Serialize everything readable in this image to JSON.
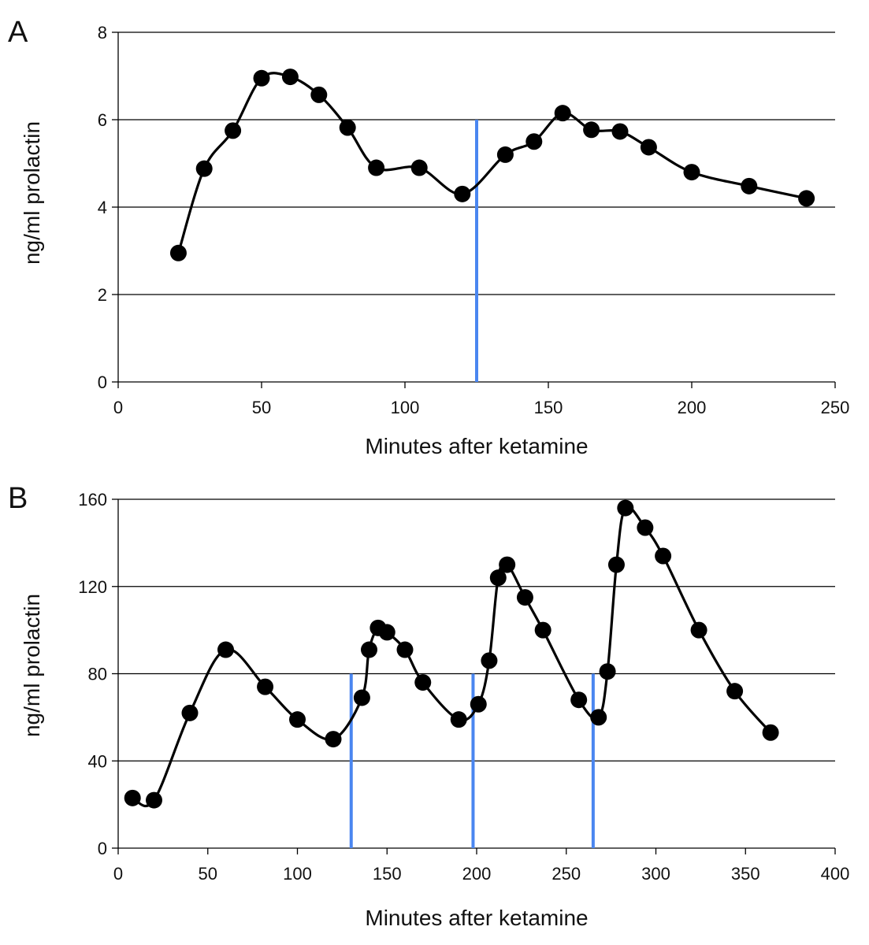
{
  "colors": {
    "line": "#000000",
    "marker": "#000000",
    "grid": "#000000",
    "event": "#4a86f0"
  },
  "chart_data": [
    {
      "type": "line",
      "panel": "A",
      "xlabel": "Minutes after ketamine",
      "ylabel": "ng/ml prolactin",
      "xlim": [
        0,
        250
      ],
      "ylim": [
        0,
        8
      ],
      "xticks": [
        0,
        50,
        100,
        150,
        200,
        250
      ],
      "yticks": [
        0,
        2,
        4,
        6,
        8
      ],
      "grid": "horizontal",
      "smooth": true,
      "series": [
        {
          "x": [
            21,
            30,
            40,
            50,
            60,
            70,
            80,
            90,
            105,
            120,
            135,
            145,
            155,
            165,
            175,
            185,
            200,
            220,
            240
          ],
          "y": [
            2.95,
            4.88,
            5.75,
            6.95,
            6.98,
            6.57,
            5.82,
            4.9,
            4.9,
            4.3,
            5.2,
            5.5,
            6.15,
            5.77,
            5.73,
            5.37,
            4.8,
            4.48,
            4.2
          ]
        }
      ],
      "events": [
        {
          "x": 125,
          "y_top": 6
        }
      ]
    },
    {
      "type": "line",
      "panel": "B",
      "xlabel": "Minutes after ketamine",
      "ylabel": "ng/ml prolactin",
      "xlim": [
        0,
        400
      ],
      "ylim": [
        0,
        160
      ],
      "xticks": [
        0,
        50,
        100,
        150,
        200,
        250,
        300,
        350,
        400
      ],
      "yticks": [
        0,
        40,
        80,
        120,
        160
      ],
      "grid": "horizontal",
      "smooth": true,
      "series": [
        {
          "x": [
            8,
            20,
            40,
            60,
            82,
            100,
            120,
            136,
            140,
            145,
            150,
            160,
            170,
            190,
            201,
            207,
            212,
            217,
            227,
            237,
            257,
            268,
            273,
            278,
            283,
            294,
            304,
            324,
            344,
            364
          ],
          "y": [
            23,
            22,
            62,
            91,
            74,
            59,
            50,
            69,
            91,
            101,
            99,
            91,
            76,
            59,
            66,
            86,
            124,
            130,
            115,
            100,
            68,
            60,
            81,
            130,
            156,
            147,
            134,
            100,
            72,
            53
          ]
        }
      ],
      "events": [
        {
          "x": 130,
          "y_top": 80
        },
        {
          "x": 198,
          "y_top": 80
        },
        {
          "x": 265,
          "y_top": 80
        }
      ]
    }
  ]
}
